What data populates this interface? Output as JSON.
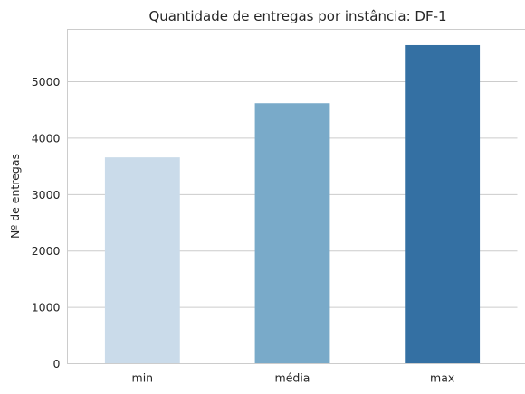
{
  "chart_data": {
    "type": "bar",
    "title": "Quantidade de entregas por instância: DF-1",
    "xlabel": "",
    "ylabel": "Nº de entregas",
    "categories": [
      "min",
      "média",
      "max"
    ],
    "values": [
      3660,
      4620,
      5650
    ],
    "colors": [
      "#cadbea",
      "#79aac9",
      "#3470a3"
    ],
    "ylim": [
      0,
      5930
    ],
    "yticks": [
      0,
      1000,
      2000,
      3000,
      4000,
      5000
    ],
    "grid": "y-axis",
    "legend": "none"
  }
}
